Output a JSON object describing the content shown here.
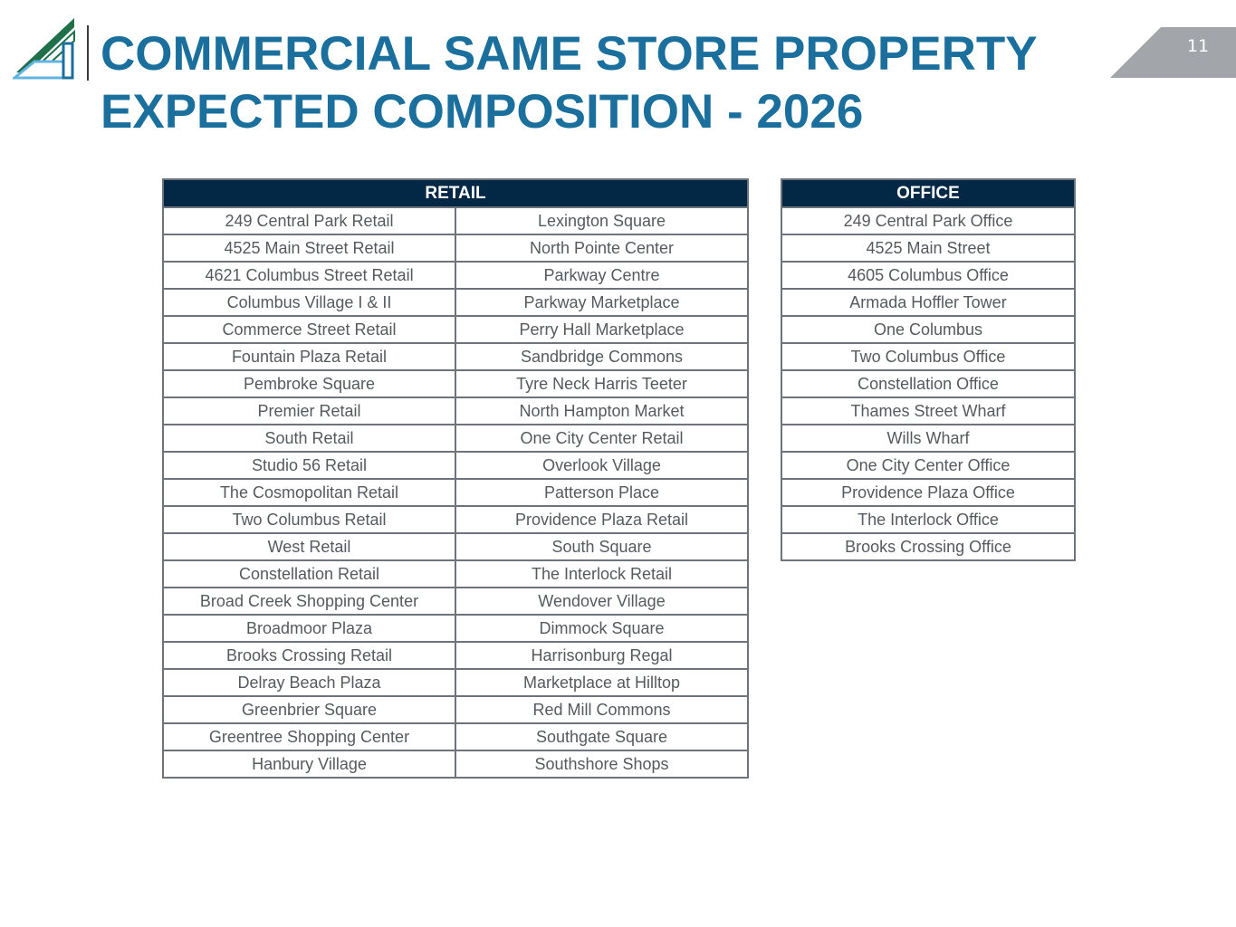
{
  "header": {
    "title_line1": "COMMERCIAL SAME STORE PROPERTY",
    "title_line2": "EXPECTED COMPOSITION - 2026",
    "page_number": "11"
  },
  "colors": {
    "title": "#1a6f9c",
    "table_header_bg": "#022846",
    "logo_green": "#1f6f4a",
    "logo_light_blue": "#62b5e0",
    "logo_blue": "#1a6f9c",
    "page_tab": "#a2a5a9"
  },
  "retail": {
    "header": "RETAIL",
    "rows": [
      [
        "249 Central Park Retail",
        "Lexington Square"
      ],
      [
        "4525 Main Street Retail",
        "North Pointe Center"
      ],
      [
        "4621 Columbus Street Retail",
        "Parkway Centre"
      ],
      [
        "Columbus Village I & II",
        "Parkway Marketplace"
      ],
      [
        "Commerce Street Retail",
        "Perry Hall Marketplace"
      ],
      [
        "Fountain Plaza Retail",
        "Sandbridge Commons"
      ],
      [
        "Pembroke Square",
        "Tyre Neck Harris Teeter"
      ],
      [
        "Premier Retail",
        "North Hampton Market"
      ],
      [
        "South Retail",
        "One City Center Retail"
      ],
      [
        "Studio 56 Retail",
        "Overlook Village"
      ],
      [
        "The Cosmopolitan Retail",
        "Patterson Place"
      ],
      [
        "Two Columbus Retail",
        "Providence Plaza Retail"
      ],
      [
        "West Retail",
        "South Square"
      ],
      [
        "Constellation Retail",
        "The Interlock Retail"
      ],
      [
        "Broad Creek Shopping Center",
        "Wendover Village"
      ],
      [
        "Broadmoor Plaza",
        "Dimmock Square"
      ],
      [
        "Brooks Crossing Retail",
        "Harrisonburg Regal"
      ],
      [
        "Delray Beach Plaza",
        "Marketplace at Hilltop"
      ],
      [
        "Greenbrier Square",
        "Red Mill Commons"
      ],
      [
        "Greentree Shopping Center",
        "Southgate Square"
      ],
      [
        "Hanbury Village",
        "Southshore Shops"
      ]
    ]
  },
  "office": {
    "header": "OFFICE",
    "rows": [
      "249 Central Park Office",
      "4525 Main Street",
      "4605 Columbus Office",
      "Armada Hoffler Tower",
      "One Columbus",
      "Two Columbus Office",
      "Constellation Office",
      "Thames Street Wharf",
      "Wills Wharf",
      "One City Center Office",
      "Providence Plaza Office",
      "The Interlock Office",
      "Brooks Crossing Office"
    ]
  }
}
